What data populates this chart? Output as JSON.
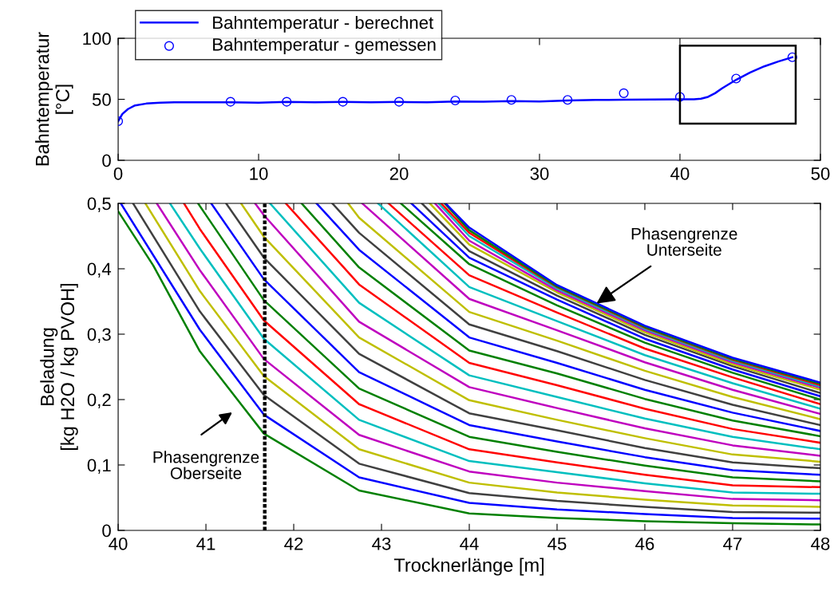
{
  "chart_data": [
    {
      "type": "line",
      "ylabel": "Bahntemperatur\n[°C]",
      "xlim": [
        0,
        50
      ],
      "ylim": [
        0,
        100
      ],
      "xticks": [
        0,
        10,
        20,
        30,
        40,
        50
      ],
      "yticks": [
        0,
        50,
        100
      ],
      "legend": "top left",
      "grid": false,
      "series": [
        {
          "name": "Bahntemperatur - berechnet",
          "type": "line",
          "color": "#0000ff",
          "marker": "none",
          "x": [
            0,
            0.3,
            0.7,
            1.2,
            2,
            3,
            4,
            6,
            8,
            10,
            12,
            14,
            16,
            18,
            20,
            22,
            24,
            26,
            28,
            30,
            32,
            34,
            36,
            38,
            40,
            41,
            41.5,
            42,
            42.5,
            43,
            44,
            45,
            46,
            47,
            48
          ],
          "values": [
            32,
            38,
            42,
            45,
            46.5,
            47.3,
            47.6,
            47.5,
            47.5,
            47.3,
            47.8,
            47.5,
            47.8,
            47.6,
            47.8,
            47.5,
            48.2,
            48,
            48.5,
            48.2,
            49,
            49.5,
            49.6,
            49.8,
            50,
            50,
            50.5,
            52,
            55,
            59,
            66,
            72,
            77,
            81,
            84.5
          ]
        },
        {
          "name": "Bahntemperatur - gemessen",
          "type": "scatter",
          "color": "#0000ff",
          "marker": "circle",
          "x": [
            0,
            8,
            12,
            16,
            20,
            24,
            28,
            32,
            36,
            40,
            44,
            48
          ],
          "values": [
            32,
            48,
            48,
            48,
            48,
            49,
            49.5,
            49.5,
            55,
            52,
            67,
            84.5
          ]
        }
      ]
    },
    {
      "type": "line",
      "xlabel": "Trocknerlänge [m]",
      "ylabel": "Beladung\n[kg H2O / kg PVOH]",
      "xlim": [
        40,
        48
      ],
      "ylim": [
        0,
        0.5
      ],
      "xticks": [
        40,
        41,
        42,
        43,
        44,
        45,
        46,
        47,
        48
      ],
      "yticks": [
        0,
        {
          "value": 0.1,
          "label": "0,1"
        },
        {
          "value": 0.2,
          "label": "0,2"
        },
        {
          "value": 0.3,
          "label": "0,3"
        },
        {
          "value": 0.4,
          "label": "0,4"
        },
        {
          "value": 0.5,
          "label": "0,5"
        }
      ],
      "grid": false,
      "legend": false,
      "marker": "none",
      "line_style": "solid",
      "ref_lines": [
        {
          "axis": "x",
          "value": 41.67,
          "color": "#000000",
          "line_style": "dotted"
        }
      ],
      "annotations": [
        "Phasengrenze\nOberseite",
        {
          "text": "Phasengrenze\nUnterseite",
          "x": 45.45,
          "y": 0.347
        }
      ],
      "series": [
        {
          "color": "#008000",
          "x": [
            40,
            40.4,
            40.93,
            41.66,
            42.745,
            44,
            45,
            46,
            47,
            48
          ],
          "values": [
            0.488,
            0.405,
            0.274,
            0.148,
            0.061,
            0.026,
            0.019,
            0.014,
            0.011,
            0.009
          ]
        },
        {
          "color": "#0000ff",
          "x": [
            40.03,
            40.93,
            41.66,
            42.745,
            44,
            45,
            46,
            47,
            48
          ],
          "values": [
            0.5,
            0.307,
            0.177,
            0.081,
            0.042,
            0.032,
            0.025,
            0.019,
            0.018
          ]
        },
        {
          "color": "#404040",
          "x": [
            40.17,
            40.93,
            41.66,
            42.745,
            44,
            45,
            46,
            47,
            48
          ],
          "values": [
            0.5,
            0.335,
            0.207,
            0.102,
            0.057,
            0.045,
            0.036,
            0.028,
            0.027
          ]
        },
        {
          "color": "#bfbf00",
          "x": [
            40.31,
            40.93,
            41.66,
            42.745,
            44,
            45,
            46,
            47,
            48
          ],
          "values": [
            0.5,
            0.366,
            0.236,
            0.124,
            0.073,
            0.058,
            0.047,
            0.038,
            0.036
          ]
        },
        {
          "color": "#bf00bf",
          "x": [
            40.44,
            40.93,
            41.66,
            42.745,
            44,
            45,
            46,
            47,
            48
          ],
          "values": [
            0.5,
            0.398,
            0.262,
            0.146,
            0.09,
            0.073,
            0.06,
            0.048,
            0.046
          ]
        },
        {
          "color": "#00bfbf",
          "x": [
            40.59,
            40.93,
            41.66,
            42.745,
            44,
            45,
            46,
            47,
            48
          ],
          "values": [
            0.5,
            0.431,
            0.293,
            0.169,
            0.106,
            0.089,
            0.072,
            0.058,
            0.056
          ]
        },
        {
          "color": "#ff0000",
          "x": [
            40.75,
            40.93,
            41.66,
            42.745,
            44,
            45,
            46,
            47,
            48
          ],
          "values": [
            0.5,
            0.461,
            0.321,
            0.193,
            0.124,
            0.104,
            0.085,
            0.069,
            0.066
          ]
        },
        {
          "color": "#008000",
          "x": [
            40.91,
            41.66,
            42.745,
            44,
            45,
            46,
            47,
            48
          ],
          "values": [
            0.5,
            0.352,
            0.217,
            0.143,
            0.12,
            0.099,
            0.081,
            0.075
          ]
        },
        {
          "color": "#0000ff",
          "x": [
            41.06,
            41.66,
            42.745,
            44,
            45,
            46,
            47,
            48
          ],
          "values": [
            0.5,
            0.384,
            0.242,
            0.161,
            0.136,
            0.112,
            0.092,
            0.085
          ]
        },
        {
          "color": "#404040",
          "x": [
            41.23,
            41.66,
            42.745,
            44,
            45,
            46,
            47,
            48
          ],
          "values": [
            0.5,
            0.417,
            0.27,
            0.179,
            0.153,
            0.126,
            0.104,
            0.095
          ]
        },
        {
          "color": "#bfbf00",
          "x": [
            41.4,
            41.66,
            42.745,
            44,
            45,
            46,
            47,
            48
          ],
          "values": [
            0.5,
            0.449,
            0.295,
            0.199,
            0.169,
            0.141,
            0.116,
            0.105
          ]
        },
        {
          "color": "#bf00bf",
          "x": [
            41.56,
            41.66,
            42.745,
            44,
            45,
            46,
            47,
            48
          ],
          "values": [
            0.5,
            0.482,
            0.319,
            0.219,
            0.187,
            0.156,
            0.13,
            0.114
          ]
        },
        {
          "color": "#00bfbf",
          "x": [
            41.73,
            42.745,
            44,
            45,
            46,
            47,
            48
          ],
          "values": [
            0.5,
            0.348,
            0.237,
            0.204,
            0.171,
            0.143,
            0.124
          ]
        },
        {
          "color": "#ff0000",
          "x": [
            41.91,
            42.745,
            44,
            45,
            46,
            47,
            48
          ],
          "values": [
            0.5,
            0.376,
            0.256,
            0.222,
            0.186,
            0.155,
            0.134
          ]
        },
        {
          "color": "#008000",
          "x": [
            42.09,
            42.745,
            44,
            45,
            46,
            47,
            48
          ],
          "values": [
            0.5,
            0.402,
            0.275,
            0.24,
            0.201,
            0.168,
            0.144
          ]
        },
        {
          "color": "#0000ff",
          "x": [
            42.26,
            42.745,
            44,
            45,
            46,
            47,
            48
          ],
          "values": [
            0.5,
            0.429,
            0.295,
            0.256,
            0.215,
            0.18,
            0.152
          ]
        },
        {
          "color": "#404040",
          "x": [
            42.44,
            42.745,
            44,
            45,
            46,
            47,
            48
          ],
          "values": [
            0.5,
            0.455,
            0.315,
            0.274,
            0.23,
            0.192,
            0.161
          ]
        },
        {
          "color": "#bfbf00",
          "x": [
            42.62,
            42.745,
            44,
            45,
            46,
            47,
            48
          ],
          "values": [
            0.5,
            0.478,
            0.334,
            0.29,
            0.244,
            0.204,
            0.17
          ]
        },
        {
          "color": "#bf00bf",
          "x": [
            42.78,
            44,
            45,
            46,
            47,
            48
          ],
          "values": [
            0.5,
            0.354,
            0.306,
            0.257,
            0.215,
            0.178
          ]
        },
        {
          "color": "#00bfbf",
          "x": [
            42.96,
            44,
            45,
            46,
            47,
            48
          ],
          "values": [
            0.5,
            0.372,
            0.32,
            0.268,
            0.225,
            0.186
          ]
        },
        {
          "color": "#ff0000",
          "x": [
            43.08,
            44,
            45,
            46,
            47,
            48
          ],
          "values": [
            0.5,
            0.39,
            0.333,
            0.278,
            0.234,
            0.193
          ]
        },
        {
          "color": "#008000",
          "x": [
            43.22,
            44,
            45,
            46,
            47,
            48
          ],
          "values": [
            0.5,
            0.407,
            0.344,
            0.287,
            0.241,
            0.2
          ]
        },
        {
          "color": "#0000ff",
          "x": [
            43.34,
            44,
            45,
            46,
            47,
            48
          ],
          "values": [
            0.5,
            0.417,
            0.353,
            0.293,
            0.246,
            0.205
          ]
        },
        {
          "color": "#404040",
          "x": [
            43.46,
            44,
            45,
            46,
            47,
            48
          ],
          "values": [
            0.5,
            0.427,
            0.359,
            0.299,
            0.251,
            0.21
          ]
        },
        {
          "color": "#bfbf00",
          "x": [
            43.55,
            44,
            45,
            46,
            47,
            48
          ],
          "values": [
            0.5,
            0.437,
            0.364,
            0.303,
            0.254,
            0.215
          ]
        },
        {
          "color": "#bf00bf",
          "x": [
            43.61,
            44,
            45,
            46,
            47,
            48
          ],
          "values": [
            0.5,
            0.443,
            0.367,
            0.306,
            0.257,
            0.218
          ]
        },
        {
          "color": "#00bfbf",
          "x": [
            43.65,
            44,
            45,
            46,
            47,
            48
          ],
          "values": [
            0.5,
            0.45,
            0.37,
            0.308,
            0.259,
            0.22
          ]
        },
        {
          "color": "#ff0000",
          "x": [
            43.68,
            44,
            45,
            46,
            47,
            48
          ],
          "values": [
            0.5,
            0.455,
            0.372,
            0.31,
            0.261,
            0.222
          ]
        },
        {
          "color": "#008000",
          "x": [
            43.72,
            44,
            45,
            46,
            47,
            48
          ],
          "values": [
            0.5,
            0.459,
            0.373,
            0.311,
            0.262,
            0.224
          ]
        },
        {
          "color": "#0000ff",
          "x": [
            43.73,
            44,
            45,
            46,
            47,
            48
          ],
          "values": [
            0.5,
            0.463,
            0.375,
            0.313,
            0.264,
            0.226
          ]
        }
      ]
    }
  ]
}
